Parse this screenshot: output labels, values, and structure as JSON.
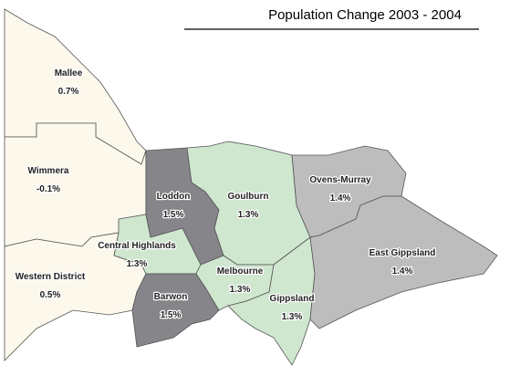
{
  "title": "Population Change 2003 - 2004",
  "regions": [
    {
      "name": "Mallee",
      "value": "0.7%"
    },
    {
      "name": "Wimmera",
      "value": "-0.1%"
    },
    {
      "name": "Western District",
      "value": "0.5%"
    },
    {
      "name": "Central Highlands",
      "value": "1.3%"
    },
    {
      "name": "Loddon",
      "value": "1.5%"
    },
    {
      "name": "Barwon",
      "value": "1.5%"
    },
    {
      "name": "Goulburn",
      "value": "1.3%"
    },
    {
      "name": "Melbourne",
      "value": "1.3%"
    },
    {
      "name": "Gippsland",
      "value": "1.3%"
    },
    {
      "name": "Ovens-Murray",
      "value": "1.4%"
    },
    {
      "name": "East Gippsland",
      "value": "1.4%"
    }
  ]
}
